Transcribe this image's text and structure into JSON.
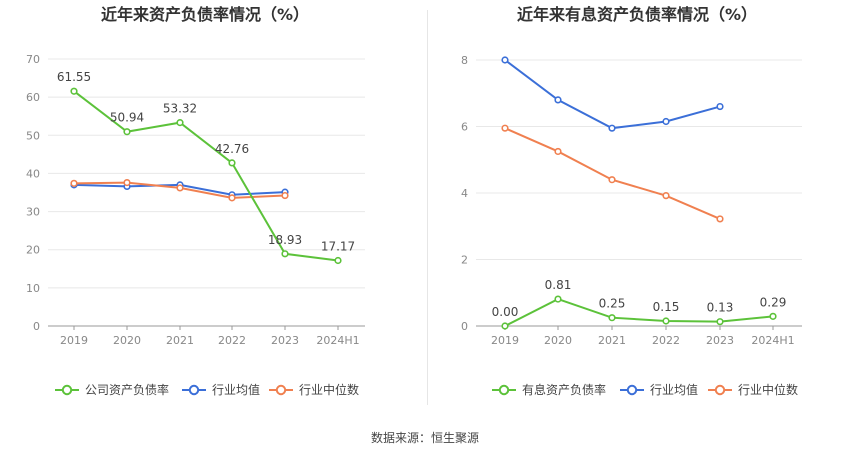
{
  "source": "数据来源：恒生聚源",
  "colors": {
    "green": "#5cc23a",
    "blue": "#3b6fd8",
    "orange": "#f08050",
    "grid": "#e8e8e8",
    "axis": "#999999",
    "tick": "#888888",
    "label": "#444444"
  },
  "chart_data": [
    {
      "type": "line",
      "title": "近年来资产负债率情况（%）",
      "categories": [
        "2019",
        "2020",
        "2021",
        "2022",
        "2023",
        "2024H1"
      ],
      "ylim": [
        0,
        70
      ],
      "yticks": [
        0,
        10,
        20,
        30,
        40,
        50,
        60,
        70
      ],
      "grid": true,
      "legend_position": "bottom",
      "series": [
        {
          "name": "公司资产负债率",
          "color": "#5cc23a",
          "values": [
            61.55,
            50.94,
            53.32,
            42.76,
            18.93,
            17.17
          ],
          "labels": [
            "61.55",
            "50.94",
            "53.32",
            "42.76",
            "18.93",
            "17.17"
          ]
        },
        {
          "name": "行业均值",
          "color": "#3b6fd8",
          "values": [
            37.0,
            36.6,
            37.0,
            34.4,
            35.1,
            null
          ]
        },
        {
          "name": "行业中位数",
          "color": "#f08050",
          "values": [
            37.4,
            37.6,
            36.2,
            33.6,
            34.2,
            null
          ]
        }
      ]
    },
    {
      "type": "line",
      "title": "近年来有息资产负债率情况（%）",
      "categories": [
        "2019",
        "2020",
        "2021",
        "2022",
        "2023",
        "2024H1"
      ],
      "ylim": [
        0,
        8
      ],
      "yticks": [
        0,
        2,
        4,
        6,
        8
      ],
      "grid": true,
      "legend_position": "bottom",
      "series": [
        {
          "name": "有息资产负债率",
          "color": "#5cc23a",
          "values": [
            0.0,
            0.81,
            0.25,
            0.15,
            0.13,
            0.29
          ],
          "labels": [
            "0.00",
            "0.81",
            "0.25",
            "0.15",
            "0.13",
            "0.29"
          ]
        },
        {
          "name": "行业均值",
          "color": "#3b6fd8",
          "values": [
            8.0,
            6.8,
            5.95,
            6.15,
            6.6,
            null
          ]
        },
        {
          "name": "行业中位数",
          "color": "#f08050",
          "values": [
            5.95,
            5.25,
            4.4,
            3.92,
            3.22,
            null
          ]
        }
      ]
    }
  ]
}
